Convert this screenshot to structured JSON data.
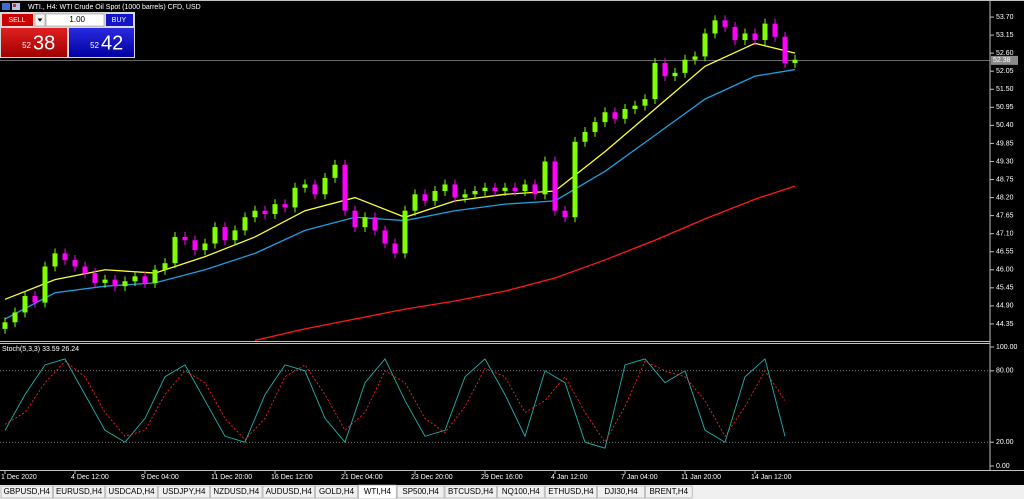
{
  "header": {
    "title": "WTI., H4:  WTI Crude Oil Spot (1000 barrels) CFD, USD"
  },
  "trade_panel": {
    "sell_label": "SELL",
    "lot": "1.00",
    "buy_label": "BUY",
    "sell_big": "52",
    "sell_small": "38",
    "buy_big": "52",
    "buy_small": "42"
  },
  "chart_data": [
    {
      "type": "candlestick",
      "up_color": "#7fff00",
      "down_color": "#ff00ff",
      "open": [
        44.2,
        44.4,
        44.7,
        45.2,
        45.0,
        46.1,
        46.5,
        46.3,
        46.1,
        45.9,
        45.6,
        45.7,
        45.5,
        45.65,
        45.8,
        45.6,
        46.0,
        46.2,
        47.0,
        46.9,
        46.6,
        46.8,
        47.3,
        46.9,
        47.2,
        47.6,
        47.8,
        47.7,
        48.0,
        47.9,
        48.5,
        48.6,
        48.3,
        48.8,
        49.2,
        47.8,
        47.3,
        47.6,
        47.2,
        46.8,
        46.5,
        47.8,
        48.3,
        48.1,
        48.4,
        48.6,
        48.2,
        48.3,
        48.4,
        48.5,
        48.4,
        48.5,
        48.4,
        48.6,
        48.3,
        49.3,
        47.8,
        47.6,
        49.9,
        50.2,
        50.5,
        50.8,
        50.6,
        50.9,
        51.0,
        51.2,
        52.3,
        51.9,
        52.0,
        52.4,
        52.5,
        53.2,
        53.6,
        53.4,
        53.0,
        53.2,
        53.0,
        53.5,
        53.1,
        52.3
      ],
      "high": [
        44.55,
        44.85,
        45.35,
        45.35,
        46.25,
        46.65,
        46.65,
        46.45,
        46.25,
        46.05,
        45.85,
        45.85,
        45.8,
        45.95,
        45.95,
        46.15,
        46.35,
        47.15,
        47.15,
        47.05,
        46.95,
        47.45,
        47.45,
        47.35,
        47.75,
        47.95,
        47.95,
        48.15,
        48.15,
        48.65,
        48.75,
        48.75,
        48.95,
        49.35,
        49.35,
        47.95,
        47.75,
        47.75,
        47.35,
        46.95,
        47.95,
        48.45,
        48.45,
        48.55,
        48.75,
        48.75,
        48.45,
        48.55,
        48.65,
        48.65,
        48.65,
        48.65,
        48.75,
        48.75,
        49.45,
        49.45,
        47.95,
        50.05,
        50.35,
        50.65,
        50.95,
        50.95,
        51.05,
        51.15,
        51.35,
        52.45,
        52.45,
        52.15,
        52.55,
        52.65,
        53.35,
        53.75,
        53.75,
        53.55,
        53.35,
        53.35,
        53.65,
        53.65,
        53.25,
        52.55
      ],
      "low": [
        44.05,
        44.25,
        44.55,
        44.85,
        44.85,
        45.95,
        46.15,
        45.95,
        45.75,
        45.45,
        45.45,
        45.35,
        45.35,
        45.5,
        45.45,
        45.45,
        45.85,
        46.05,
        46.75,
        46.45,
        46.45,
        46.65,
        46.75,
        46.75,
        47.05,
        47.45,
        47.55,
        47.55,
        47.75,
        47.75,
        48.35,
        48.15,
        48.15,
        48.65,
        47.65,
        47.15,
        47.15,
        47.05,
        46.65,
        46.35,
        46.35,
        47.65,
        47.95,
        47.95,
        48.25,
        48.05,
        48.05,
        48.15,
        48.25,
        48.25,
        48.25,
        48.25,
        48.25,
        48.15,
        48.15,
        47.65,
        47.45,
        47.45,
        49.75,
        50.05,
        50.35,
        50.45,
        50.45,
        50.75,
        50.85,
        51.05,
        51.75,
        51.75,
        51.85,
        52.25,
        52.35,
        53.05,
        53.25,
        52.85,
        52.85,
        52.85,
        52.85,
        52.95,
        52.15,
        52.15
      ],
      "close": [
        44.4,
        44.7,
        45.2,
        45.0,
        46.1,
        46.5,
        46.3,
        46.1,
        45.9,
        45.6,
        45.7,
        45.5,
        45.65,
        45.8,
        45.6,
        46.0,
        46.2,
        47.0,
        46.9,
        46.6,
        46.8,
        47.3,
        46.9,
        47.2,
        47.6,
        47.8,
        47.7,
        48.0,
        47.9,
        48.5,
        48.6,
        48.3,
        48.8,
        49.2,
        47.8,
        47.3,
        47.6,
        47.2,
        46.8,
        46.5,
        47.8,
        48.3,
        48.1,
        48.4,
        48.6,
        48.2,
        48.3,
        48.4,
        48.5,
        48.4,
        48.5,
        48.4,
        48.6,
        48.3,
        49.3,
        47.8,
        47.6,
        49.9,
        50.2,
        50.5,
        50.8,
        50.6,
        50.9,
        51.0,
        51.2,
        52.3,
        51.9,
        52.0,
        52.4,
        52.5,
        53.2,
        53.6,
        53.4,
        53.0,
        53.2,
        53.0,
        53.5,
        53.1,
        52.3,
        52.4
      ],
      "overlays": [
        {
          "color": "#ffff33",
          "x": [
            0,
            5,
            10,
            15,
            20,
            25,
            30,
            35,
            40,
            45,
            50,
            55,
            60,
            65,
            70,
            75,
            79
          ],
          "values": [
            45.1,
            45.7,
            46.0,
            45.9,
            46.4,
            47.0,
            47.8,
            48.2,
            47.6,
            48.1,
            48.3,
            48.4,
            49.6,
            50.9,
            52.2,
            52.9,
            52.6
          ]
        },
        {
          "color": "#1e9fe0",
          "x": [
            0,
            5,
            10,
            15,
            20,
            25,
            30,
            35,
            40,
            45,
            50,
            55,
            60,
            65,
            70,
            75,
            79
          ],
          "values": [
            44.5,
            45.3,
            45.5,
            45.6,
            46.0,
            46.5,
            47.2,
            47.6,
            47.5,
            47.8,
            48.0,
            48.1,
            49.0,
            50.1,
            51.2,
            51.9,
            52.1
          ]
        },
        {
          "color": "#ff1a1a",
          "x": [
            25,
            30,
            35,
            40,
            45,
            50,
            55,
            60,
            65,
            70,
            75,
            79
          ],
          "values": [
            43.85,
            44.2,
            44.5,
            44.8,
            45.05,
            45.35,
            45.75,
            46.3,
            46.9,
            47.55,
            48.15,
            48.55
          ]
        }
      ],
      "current_price": {
        "value": 52.38,
        "label": "52.38"
      },
      "ylim": [
        43.83,
        54.22
      ],
      "yticks": [
        {
          "value": 53.7,
          "label": "53.70"
        },
        53.15,
        {
          "value": 52.6,
          "label": "52.60"
        },
        52.05,
        {
          "value": 51.5,
          "label": "51.50"
        },
        50.95,
        {
          "value": 50.4,
          "label": "50.40"
        },
        49.85,
        {
          "value": 49.3,
          "label": "49.30"
        },
        48.75,
        {
          "value": 48.2,
          "label": "48.20"
        },
        47.65,
        {
          "value": 47.1,
          "label": "47.10"
        },
        46.55,
        {
          "value": 46.0,
          "label": "46.00"
        },
        45.45,
        {
          "value": 44.9,
          "label": "44.90"
        },
        44.35
      ],
      "xticks": [
        {
          "value": 0,
          "label": "1 Dec 2020"
        },
        {
          "value": 7,
          "label": "4 Dec 12:00"
        },
        {
          "value": 14,
          "label": "9 Dec 04:00"
        },
        {
          "value": 21,
          "label": "11 Dec 20:00"
        },
        {
          "value": 27,
          "label": "16 Dec 12:00"
        },
        {
          "value": 34,
          "label": "21 Dec 04:00"
        },
        {
          "value": 41,
          "label": "23 Dec 20:00"
        },
        {
          "value": 48,
          "label": "29 Dec 16:00"
        },
        {
          "value": 55,
          "label": "4 Jan 12:00"
        },
        {
          "value": 62,
          "label": "7 Jan 04:00"
        },
        {
          "value": 68,
          "label": "11 Jan 20:00"
        },
        {
          "value": 75,
          "label": "14 Jan 12:00"
        }
      ]
    },
    {
      "type": "line",
      "title": "Stoch(5,3,3) 33.59 26.24",
      "x": [
        0,
        2,
        4,
        6,
        8,
        10,
        12,
        14,
        16,
        18,
        20,
        22,
        24,
        26,
        28,
        30,
        32,
        34,
        36,
        38,
        40,
        42,
        44,
        46,
        48,
        50,
        52,
        54,
        56,
        58,
        60,
        62,
        64,
        66,
        68,
        70,
        72,
        74,
        76,
        78
      ],
      "series": [
        {
          "color": "#20b2aa",
          "values": [
            30,
            60,
            85,
            90,
            60,
            30,
            20,
            40,
            75,
            85,
            55,
            25,
            20,
            60,
            85,
            80,
            40,
            20,
            70,
            90,
            55,
            25,
            30,
            75,
            90,
            60,
            25,
            80,
            70,
            20,
            15,
            85,
            90,
            70,
            80,
            30,
            20,
            75,
            90,
            25
          ]
        },
        {
          "color": "#ff2020",
          "dashed": true,
          "values": [
            35,
            45,
            70,
            88,
            75,
            45,
            25,
            30,
            60,
            80,
            70,
            40,
            22,
            40,
            75,
            85,
            60,
            30,
            45,
            80,
            70,
            40,
            28,
            50,
            82,
            75,
            45,
            55,
            75,
            45,
            20,
            50,
            88,
            80,
            75,
            55,
            25,
            50,
            80,
            55
          ]
        }
      ],
      "levels": [
        80,
        20
      ],
      "ylim": [
        0,
        100
      ],
      "yticks": [
        {
          "value": 100,
          "label": "100.00"
        },
        {
          "value": 80,
          "label": "80.00"
        },
        {
          "value": 20,
          "label": "20.00"
        },
        {
          "value": 0,
          "label": "0.00"
        }
      ]
    }
  ],
  "tabs": [
    "GBPUSD,H4",
    "EURUSD,H4",
    "USDCAD,H4",
    "USDJPY,H4",
    "NZDUSD,H4",
    "AUDUSD,H4",
    "GOLD,H4",
    "WTI,H4",
    "SP500,H4",
    "BTCUSD,H4",
    "NQ100,H4",
    "ETHUSD,H4",
    "DJI30,H4",
    "BRENT,H4"
  ],
  "active_tab": 7
}
